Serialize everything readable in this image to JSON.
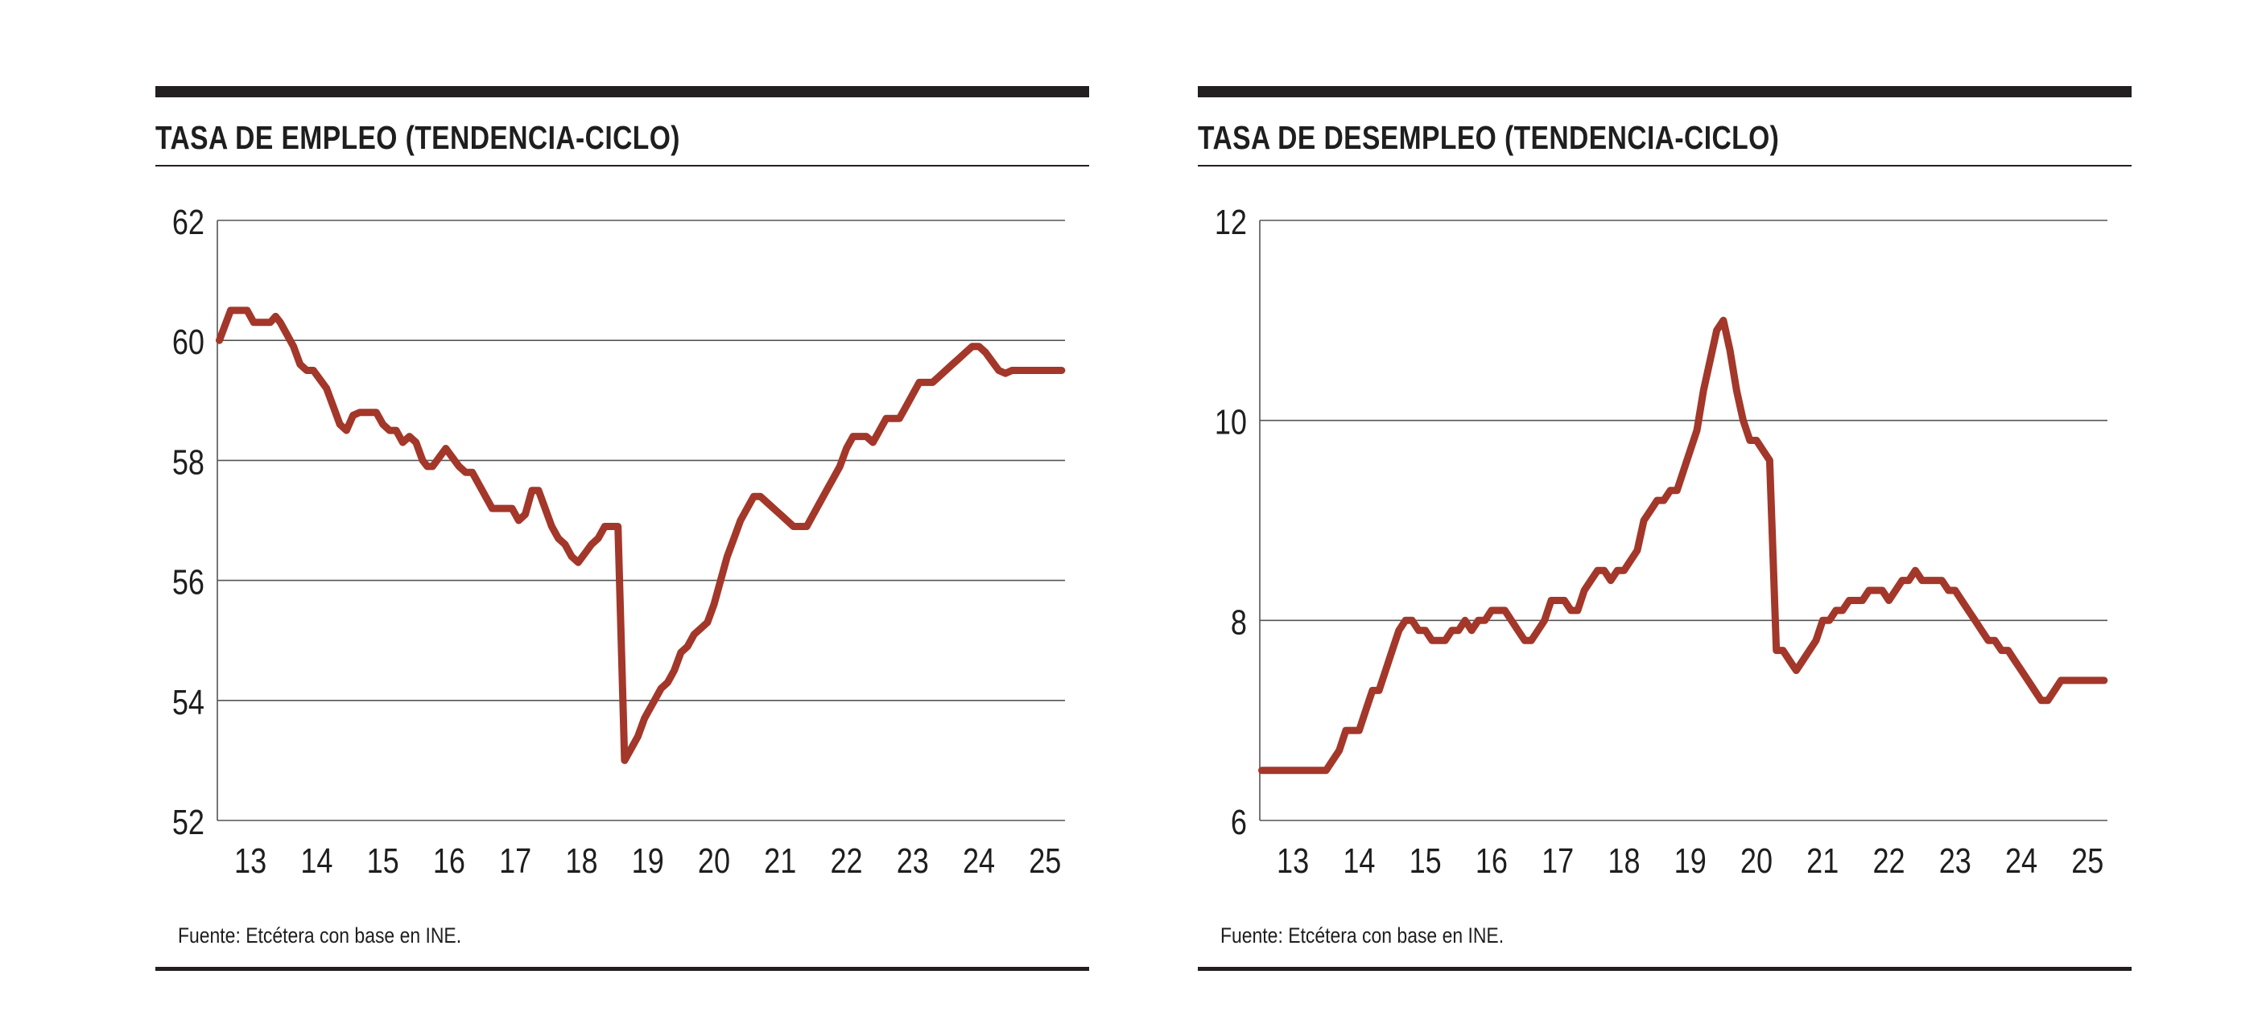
{
  "colors": {
    "line": "#a3372a",
    "rule": "#231f20",
    "grid": "#555555",
    "text": "#1e1e1e"
  },
  "chart_data": [
    {
      "type": "line",
      "title": "TASA DE EMPLEO (TENDENCIA-CICLO)",
      "source": "Fuente: Etcétera con base en INE.",
      "xlabel": "",
      "ylabel": "",
      "xlim": [
        12.5,
        25.3
      ],
      "ylim": [
        52,
        62
      ],
      "yticks": [
        52,
        54,
        56,
        58,
        60,
        62
      ],
      "xtick_values": [
        13,
        14,
        15,
        16,
        17,
        18,
        19,
        20,
        21,
        22,
        23,
        24,
        25
      ],
      "xtick_labels": [
        "13",
        "14",
        "15",
        "16",
        "17",
        "18",
        "19",
        "20",
        "21",
        "22",
        "23",
        "24",
        "25"
      ],
      "series": [
        {
          "name": "Tasa de empleo",
          "x": [
            12.53,
            12.7,
            12.8,
            12.95,
            13.05,
            13.2,
            13.3,
            13.38,
            13.45,
            13.55,
            13.65,
            13.75,
            13.85,
            13.95,
            14.05,
            14.15,
            14.25,
            14.35,
            14.45,
            14.55,
            14.65,
            14.75,
            14.9,
            15.0,
            15.1,
            15.2,
            15.3,
            15.4,
            15.5,
            15.6,
            15.67,
            15.75,
            15.85,
            15.95,
            16.05,
            16.15,
            16.25,
            16.35,
            16.45,
            16.55,
            16.65,
            16.75,
            16.85,
            16.95,
            17.05,
            17.15,
            17.25,
            17.35,
            17.45,
            17.55,
            17.65,
            17.75,
            17.85,
            17.95,
            18.05,
            18.15,
            18.25,
            18.35,
            18.45,
            18.55,
            18.65,
            18.75,
            18.85,
            18.95,
            19.0,
            19.1,
            19.2,
            19.3,
            19.4,
            19.5,
            19.6,
            19.7,
            19.8,
            19.9,
            20.0,
            20.1,
            20.2,
            20.3,
            20.4,
            20.5,
            20.6,
            20.7,
            20.8,
            20.9,
            21.0,
            21.1,
            21.2,
            21.3,
            21.4,
            21.5,
            21.6,
            21.7,
            21.8,
            21.9,
            22.0,
            22.1,
            22.2,
            22.3,
            22.4,
            22.5,
            22.6,
            22.7,
            22.8,
            22.9,
            23.0,
            23.1,
            23.2,
            23.3,
            23.4,
            23.5,
            23.6,
            23.7,
            23.8,
            23.9,
            24.0,
            24.1,
            24.2,
            24.3,
            24.4,
            24.5,
            24.6,
            24.7,
            24.8,
            24.9,
            25.0,
            25.1,
            25.2,
            25.25
          ],
          "values": [
            60.0,
            60.5,
            60.5,
            60.5,
            60.3,
            60.3,
            60.3,
            60.4,
            60.3,
            60.1,
            59.9,
            59.6,
            59.5,
            59.5,
            59.35,
            59.2,
            58.9,
            58.6,
            58.5,
            58.75,
            58.8,
            58.8,
            58.8,
            58.6,
            58.5,
            58.5,
            58.3,
            58.4,
            58.3,
            58.0,
            57.9,
            57.9,
            58.05,
            58.2,
            58.05,
            57.9,
            57.8,
            57.8,
            57.6,
            57.4,
            57.2,
            57.2,
            57.2,
            57.2,
            57.0,
            57.1,
            57.5,
            57.5,
            57.2,
            56.9,
            56.7,
            56.6,
            56.4,
            56.3,
            56.45,
            56.6,
            56.7,
            56.9,
            56.9,
            56.9,
            53.0,
            53.2,
            53.4,
            53.7,
            53.8,
            54.0,
            54.2,
            54.3,
            54.5,
            54.8,
            54.9,
            55.1,
            55.2,
            55.3,
            55.6,
            56.0,
            56.4,
            56.7,
            57.0,
            57.2,
            57.4,
            57.4,
            57.3,
            57.2,
            57.1,
            57.0,
            56.9,
            56.9,
            56.9,
            57.1,
            57.3,
            57.5,
            57.7,
            57.9,
            58.2,
            58.4,
            58.4,
            58.4,
            58.3,
            58.5,
            58.7,
            58.7,
            58.7,
            58.9,
            59.1,
            59.3,
            59.3,
            59.3,
            59.4,
            59.5,
            59.6,
            59.7,
            59.8,
            59.9,
            59.9,
            59.8,
            59.65,
            59.5,
            59.45,
            59.5,
            59.5,
            59.5,
            59.5,
            59.5,
            59.5,
            59.5,
            59.5,
            59.5
          ]
        }
      ]
    },
    {
      "type": "line",
      "title": "TASA DE DESEMPLEO (TENDENCIA-CICLO)",
      "source": "Fuente: Etcétera con base en INE.",
      "xlabel": "",
      "ylabel": "",
      "xlim": [
        12.5,
        25.3
      ],
      "ylim": [
        6,
        12
      ],
      "yticks": [
        6,
        8,
        10,
        12
      ],
      "xtick_values": [
        13,
        14,
        15,
        16,
        17,
        18,
        19,
        20,
        21,
        22,
        23,
        24,
        25
      ],
      "xtick_labels": [
        "13",
        "14",
        "15",
        "16",
        "17",
        "18",
        "19",
        "20",
        "21",
        "22",
        "23",
        "24",
        "25"
      ],
      "series": [
        {
          "name": "Tasa de desempleo",
          "x": [
            12.53,
            12.7,
            12.8,
            12.9,
            13.0,
            13.1,
            13.2,
            13.3,
            13.4,
            13.5,
            13.6,
            13.7,
            13.8,
            13.9,
            14.0,
            14.1,
            14.2,
            14.3,
            14.4,
            14.5,
            14.6,
            14.7,
            14.8,
            14.9,
            15.0,
            15.1,
            15.2,
            15.3,
            15.4,
            15.5,
            15.6,
            15.7,
            15.8,
            15.9,
            16.0,
            16.1,
            16.2,
            16.3,
            16.4,
            16.5,
            16.6,
            16.7,
            16.8,
            16.9,
            17.0,
            17.1,
            17.2,
            17.3,
            17.4,
            17.5,
            17.6,
            17.7,
            17.8,
            17.9,
            18.0,
            18.1,
            18.2,
            18.3,
            18.4,
            18.5,
            18.6,
            18.7,
            18.8,
            18.9,
            19.0,
            19.1,
            19.2,
            19.3,
            19.4,
            19.5,
            19.6,
            19.7,
            19.8,
            19.9,
            20.0,
            20.1,
            20.2,
            20.3,
            20.4,
            20.5,
            20.6,
            20.7,
            20.8,
            20.9,
            21.0,
            21.1,
            21.2,
            21.3,
            21.4,
            21.5,
            21.6,
            21.7,
            21.8,
            21.9,
            22.0,
            22.1,
            22.2,
            22.3,
            22.4,
            22.5,
            22.6,
            22.7,
            22.8,
            22.9,
            23.0,
            23.1,
            23.2,
            23.3,
            23.4,
            23.5,
            23.6,
            23.7,
            23.8,
            23.9,
            24.0,
            24.1,
            24.2,
            24.3,
            24.4,
            24.5,
            24.6,
            24.7,
            24.8,
            24.9,
            25.0,
            25.1,
            25.2,
            25.25
          ],
          "values": [
            6.5,
            6.5,
            6.5,
            6.5,
            6.5,
            6.5,
            6.5,
            6.5,
            6.5,
            6.5,
            6.6,
            6.7,
            6.9,
            6.9,
            6.9,
            7.1,
            7.3,
            7.3,
            7.5,
            7.7,
            7.9,
            8.0,
            8.0,
            7.9,
            7.9,
            7.8,
            7.8,
            7.8,
            7.9,
            7.9,
            8.0,
            7.9,
            8.0,
            8.0,
            8.1,
            8.1,
            8.1,
            8.0,
            7.9,
            7.8,
            7.8,
            7.9,
            8.0,
            8.2,
            8.2,
            8.2,
            8.1,
            8.1,
            8.3,
            8.4,
            8.5,
            8.5,
            8.4,
            8.5,
            8.5,
            8.6,
            8.7,
            9.0,
            9.1,
            9.2,
            9.2,
            9.3,
            9.3,
            9.5,
            9.7,
            9.9,
            10.3,
            10.6,
            10.9,
            11.0,
            10.7,
            10.3,
            10.0,
            9.8,
            9.8,
            9.7,
            9.6,
            7.7,
            7.7,
            7.6,
            7.5,
            7.6,
            7.7,
            7.8,
            8.0,
            8.0,
            8.1,
            8.1,
            8.2,
            8.2,
            8.2,
            8.3,
            8.3,
            8.3,
            8.2,
            8.3,
            8.4,
            8.4,
            8.5,
            8.4,
            8.4,
            8.4,
            8.4,
            8.3,
            8.3,
            8.2,
            8.1,
            8.0,
            7.9,
            7.8,
            7.8,
            7.7,
            7.7,
            7.6,
            7.5,
            7.4,
            7.3,
            7.2,
            7.2,
            7.3,
            7.4,
            7.4,
            7.4,
            7.4,
            7.4,
            7.4,
            7.4,
            7.4
          ]
        }
      ]
    }
  ]
}
